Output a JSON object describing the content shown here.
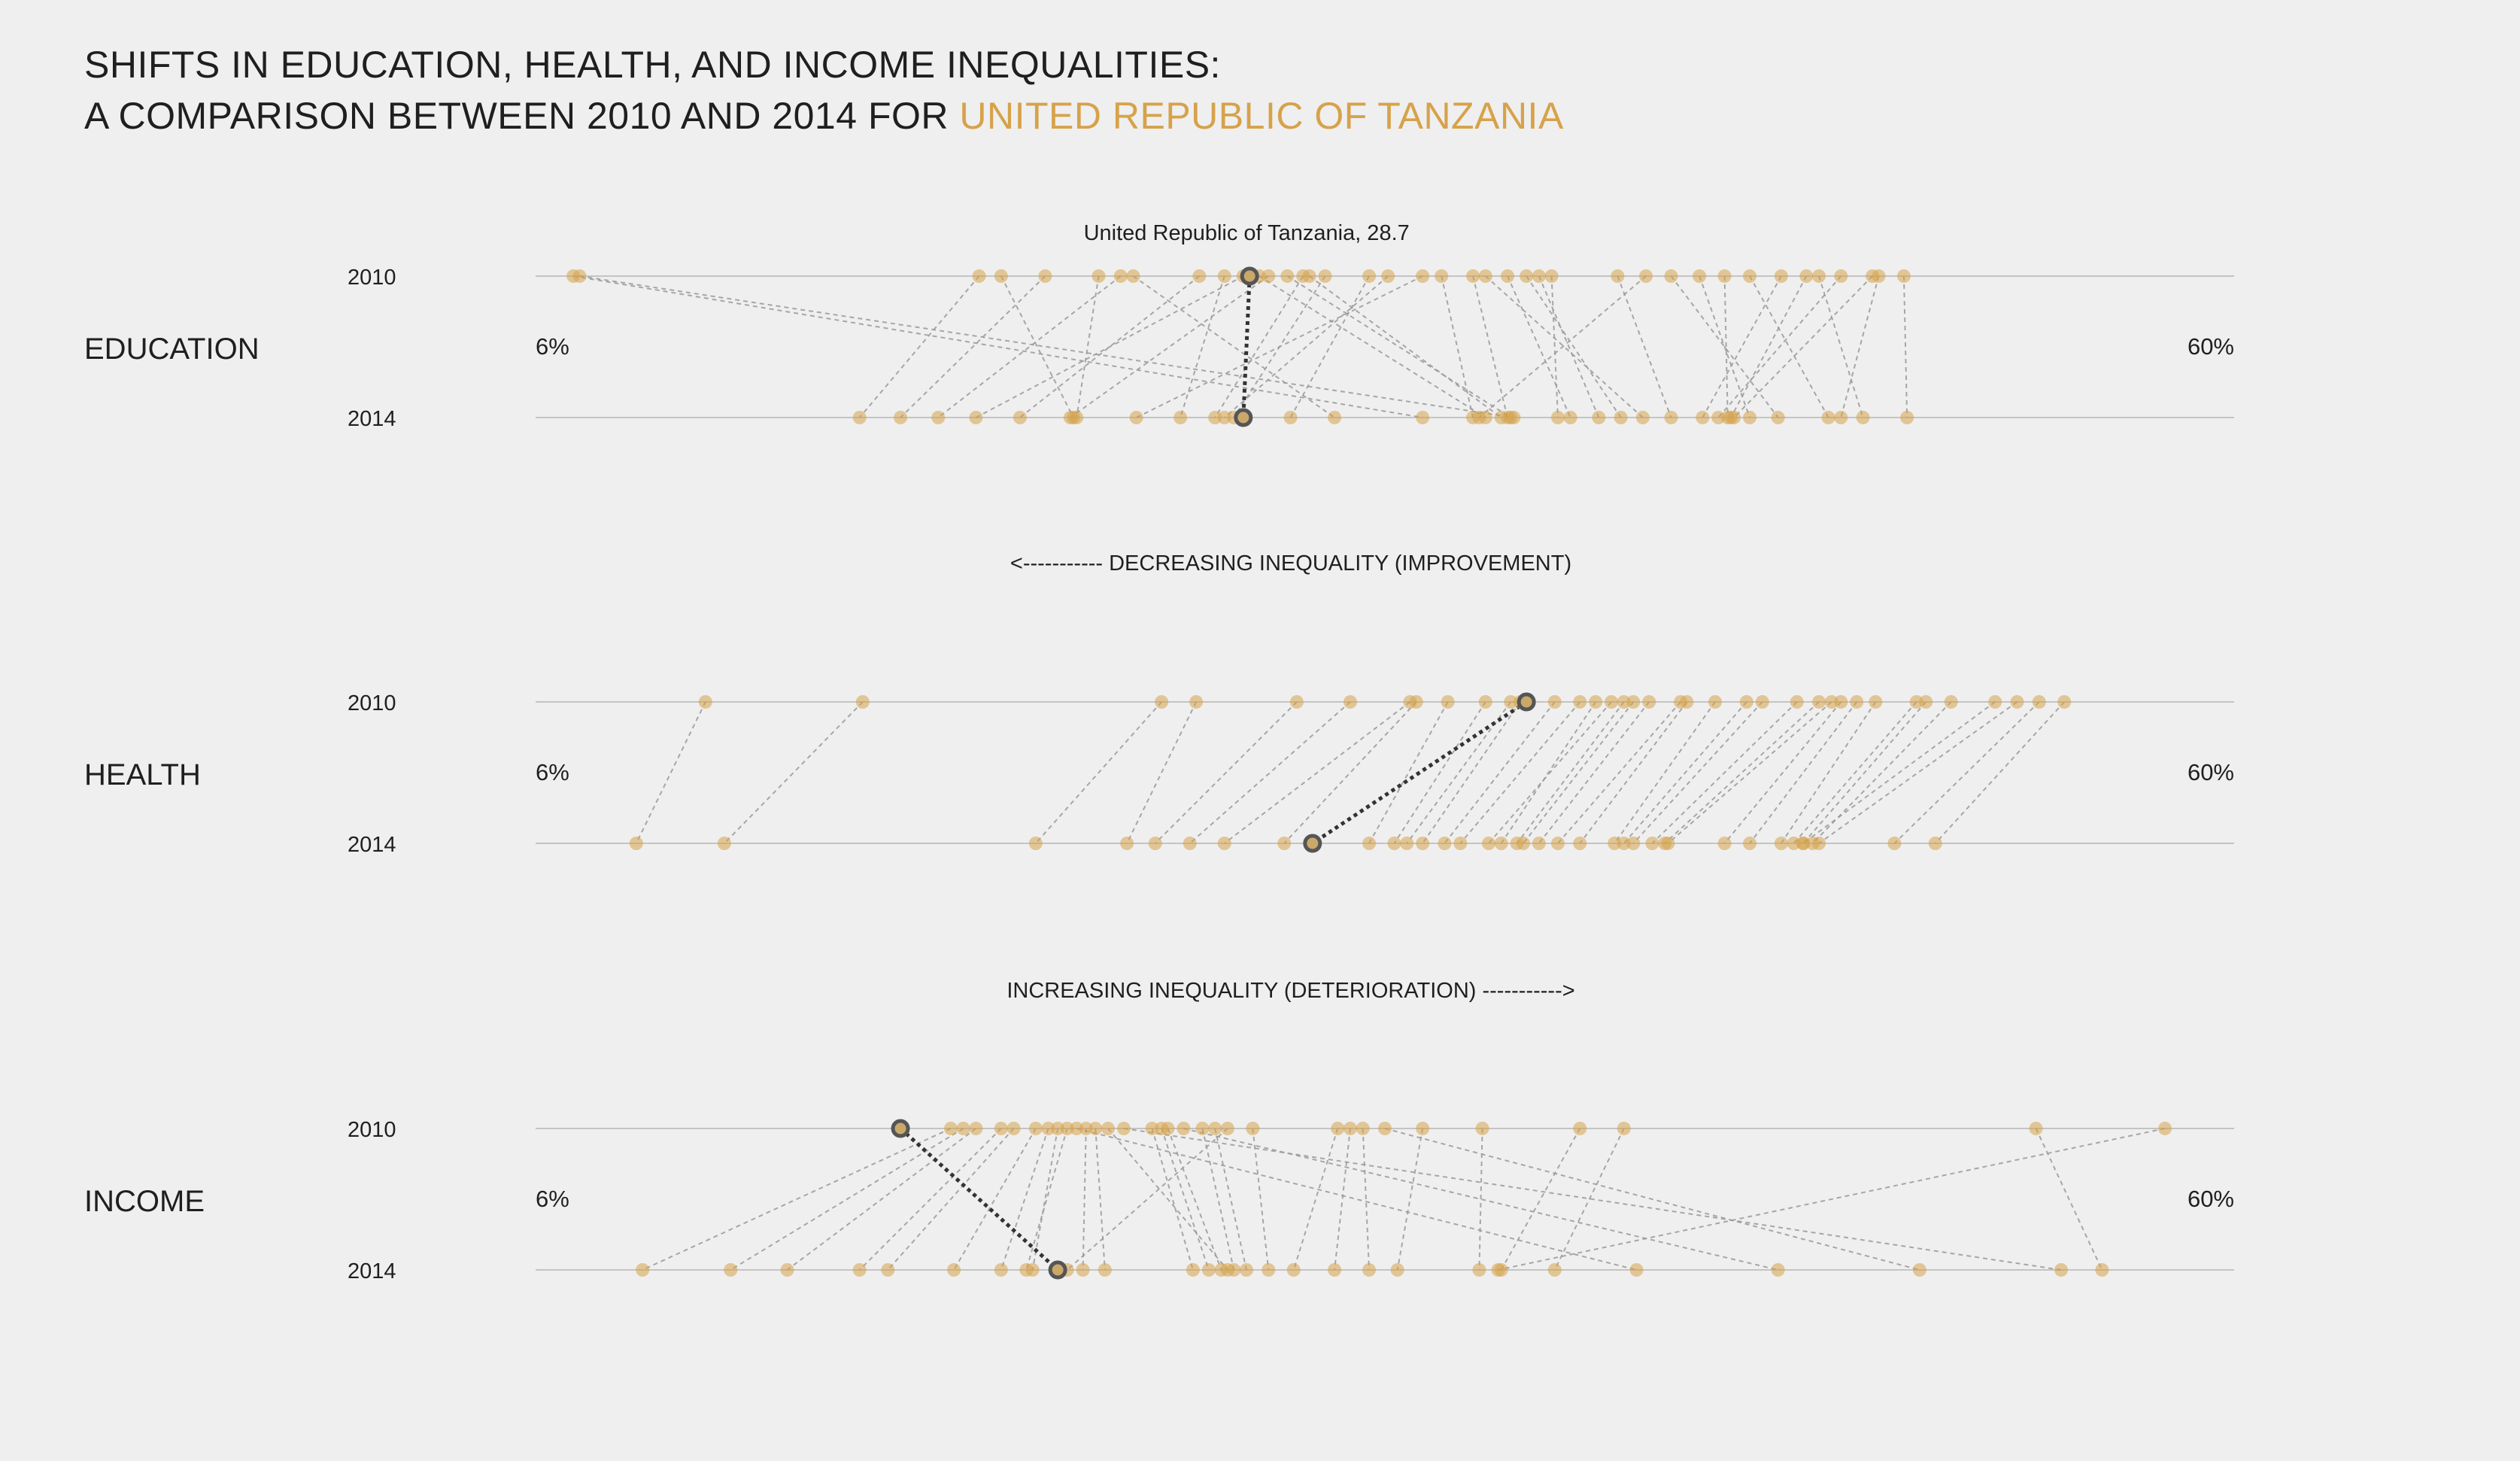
{
  "title": {
    "line1": "SHIFTS IN EDUCATION, HEALTH, AND INCOME INEQUALITIES:",
    "line2_prefix": "A COMPARISON BETWEEN 2010 AND 2014 FOR ",
    "country": "UNITED REPUBLIC OF TANZANIA"
  },
  "colors": {
    "background": "#efefef",
    "point": "#d6a24a",
    "highlight": "#555555",
    "link": "#9a9a9a",
    "axis": "#c4c4c4"
  },
  "annotations": {
    "decreasing": "<----------- DECREASING INEQUALITY (IMPROVEMENT)",
    "increasing": "INCREASING INEQUALITY (DETERIORATION) ----------->",
    "highlight_label": "United Republic of Tanzania, 28.7"
  },
  "chart_data": {
    "type": "scatter",
    "x_range": [
      6,
      60
    ],
    "unit": "%",
    "years": [
      "2010",
      "2014"
    ],
    "highlight_country": "United Republic of Tanzania",
    "panels": [
      {
        "name": "EDUCATION",
        "min_label": "6%",
        "max_label": "60%",
        "highlight": {
          "v2010": 28.7,
          "v2014": 28.5
        },
        "pairs": [
          [
            7.2,
            34.2
          ],
          [
            7.4,
            37.1
          ],
          [
            20.1,
            16.3
          ],
          [
            20.8,
            23.1
          ],
          [
            22.2,
            17.6
          ],
          [
            23.9,
            23.2
          ],
          [
            24.6,
            18.8
          ],
          [
            25.0,
            31.4
          ],
          [
            27.1,
            21.4
          ],
          [
            27.9,
            26.5
          ],
          [
            28.5,
            20.0
          ],
          [
            29.0,
            36.2
          ],
          [
            29.3,
            23.0
          ],
          [
            29.9,
            37.0
          ],
          [
            30.4,
            27.6
          ],
          [
            30.6,
            36.7
          ],
          [
            31.1,
            28.2
          ],
          [
            32.5,
            30.0
          ],
          [
            33.1,
            27.9
          ],
          [
            34.2,
            25.1
          ],
          [
            34.8,
            35.8
          ],
          [
            35.8,
            36.9
          ],
          [
            36.2,
            41.2
          ],
          [
            36.9,
            38.9
          ],
          [
            37.5,
            40.5
          ],
          [
            37.9,
            39.8
          ],
          [
            38.3,
            38.5
          ],
          [
            40.4,
            42.1
          ],
          [
            41.3,
            36.0
          ],
          [
            42.1,
            45.5
          ],
          [
            43.0,
            44.6
          ],
          [
            43.8,
            43.9
          ],
          [
            44.6,
            47.1
          ],
          [
            45.6,
            43.1
          ],
          [
            46.4,
            44.0
          ],
          [
            46.8,
            48.2
          ],
          [
            47.5,
            43.6
          ],
          [
            48.5,
            44.1
          ],
          [
            48.7,
            47.5
          ],
          [
            49.5,
            49.6
          ]
        ]
      },
      {
        "name": "HEALTH",
        "min_label": "6%",
        "max_label": "60%",
        "highlight": {
          "v2010": 37.5,
          "v2014": 30.7
        },
        "pairs": [
          [
            11.4,
            9.2
          ],
          [
            16.4,
            12.0
          ],
          [
            25.9,
            21.9
          ],
          [
            27.0,
            24.8
          ],
          [
            30.2,
            25.7
          ],
          [
            31.9,
            26.8
          ],
          [
            33.8,
            27.9
          ],
          [
            34.0,
            29.8
          ],
          [
            35.0,
            32.5
          ],
          [
            36.2,
            33.3
          ],
          [
            37.0,
            33.7
          ],
          [
            37.3,
            34.2
          ],
          [
            38.4,
            34.9
          ],
          [
            39.2,
            35.4
          ],
          [
            39.7,
            36.7
          ],
          [
            40.2,
            36.3
          ],
          [
            40.6,
            37.2
          ],
          [
            40.9,
            37.4
          ],
          [
            41.4,
            37.9
          ],
          [
            42.4,
            38.5
          ],
          [
            42.6,
            39.2
          ],
          [
            43.5,
            40.3
          ],
          [
            44.5,
            40.6
          ],
          [
            45.0,
            40.9
          ],
          [
            46.1,
            41.5
          ],
          [
            46.8,
            41.9
          ],
          [
            47.2,
            42.0
          ],
          [
            47.5,
            43.8
          ],
          [
            48.0,
            44.6
          ],
          [
            48.6,
            45.6
          ],
          [
            49.9,
            46.0
          ],
          [
            50.2,
            46.3
          ],
          [
            51.0,
            46.6
          ],
          [
            52.4,
            46.3
          ],
          [
            53.1,
            46.8
          ],
          [
            53.8,
            49.2
          ],
          [
            54.6,
            50.5
          ]
        ]
      },
      {
        "name": "INCOME",
        "min_label": "6%",
        "max_label": "60%",
        "highlight": {
          "v2010": 17.6,
          "v2014": 22.6
        },
        "pairs": [
          [
            19.2,
            9.4
          ],
          [
            19.6,
            12.2
          ],
          [
            20.0,
            14.0
          ],
          [
            20.8,
            16.3
          ],
          [
            21.2,
            17.2
          ],
          [
            21.9,
            19.3
          ],
          [
            22.3,
            20.8
          ],
          [
            22.6,
            21.8
          ],
          [
            22.9,
            21.6
          ],
          [
            23.5,
            23.4
          ],
          [
            23.8,
            24.1
          ],
          [
            25.6,
            26.9
          ],
          [
            25.9,
            27.4
          ],
          [
            26.1,
            27.8
          ],
          [
            27.2,
            28.2
          ],
          [
            27.6,
            28.6
          ],
          [
            28.8,
            29.3
          ],
          [
            31.5,
            30.1
          ],
          [
            31.9,
            31.4
          ],
          [
            32.3,
            32.5
          ],
          [
            34.2,
            33.4
          ],
          [
            36.1,
            36.0
          ],
          [
            39.2,
            36.7
          ],
          [
            40.6,
            38.4
          ],
          [
            53.7,
            55.8
          ],
          [
            57.8,
            36.6
          ],
          [
            23.2,
            41.0
          ],
          [
            33.0,
            50.0
          ],
          [
            26.6,
            45.5
          ],
          [
            24.7,
            54.5
          ],
          [
            28.0,
            22.9
          ],
          [
            24.2,
            28.0
          ]
        ]
      }
    ]
  }
}
